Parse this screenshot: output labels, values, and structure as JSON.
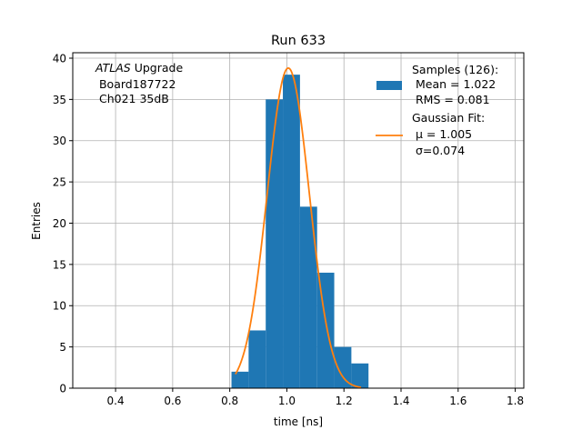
{
  "chart_data": {
    "type": "bar",
    "title": "Run 633",
    "xlabel": "time [ns]",
    "ylabel": "Entries",
    "xlim": [
      0.25,
      1.83
    ],
    "ylim": [
      0,
      40.66
    ],
    "grid": true,
    "xticks": [
      "0.4",
      "0.6",
      "0.8",
      "1.0",
      "1.2",
      "1.4",
      "1.6",
      "1.8"
    ],
    "xtick_values": [
      0.4,
      0.6,
      0.8,
      1.0,
      1.2,
      1.4,
      1.6,
      1.8
    ],
    "yticks": [
      "0",
      "5",
      "10",
      "15",
      "20",
      "25",
      "30",
      "35",
      "40"
    ],
    "ytick_values": [
      0,
      5,
      10,
      15,
      20,
      25,
      30,
      35,
      40
    ],
    "histogram": {
      "bin_edges": [
        0.806,
        0.866,
        0.926,
        0.986,
        1.046,
        1.106,
        1.166,
        1.226,
        1.286
      ],
      "counts": [
        2,
        7,
        35,
        38,
        22,
        14,
        5,
        3
      ],
      "color": "#1f77b4"
    },
    "fit": {
      "type": "gaussian",
      "amplitude": 38.8,
      "mu": 1.005,
      "sigma": 0.074,
      "x_range": [
        0.82,
        1.26
      ],
      "color": "#ff7f0e"
    },
    "annotation": {
      "italic": "ATLAS",
      "line1_rest": " Upgrade",
      "line2": " Board187722",
      "line3": " Ch021 35dB"
    },
    "legend": {
      "placement": "top-right",
      "entries": [
        {
          "lines": [
            "Samples (126):",
            " Mean = 1.022",
            " RMS = 0.081"
          ],
          "marker": "patch",
          "color": "#1f77b4"
        },
        {
          "lines": [
            "Gaussian Fit:",
            " μ = 1.005",
            " σ=0.074"
          ],
          "marker": "line",
          "color": "#ff7f0e"
        }
      ]
    }
  }
}
